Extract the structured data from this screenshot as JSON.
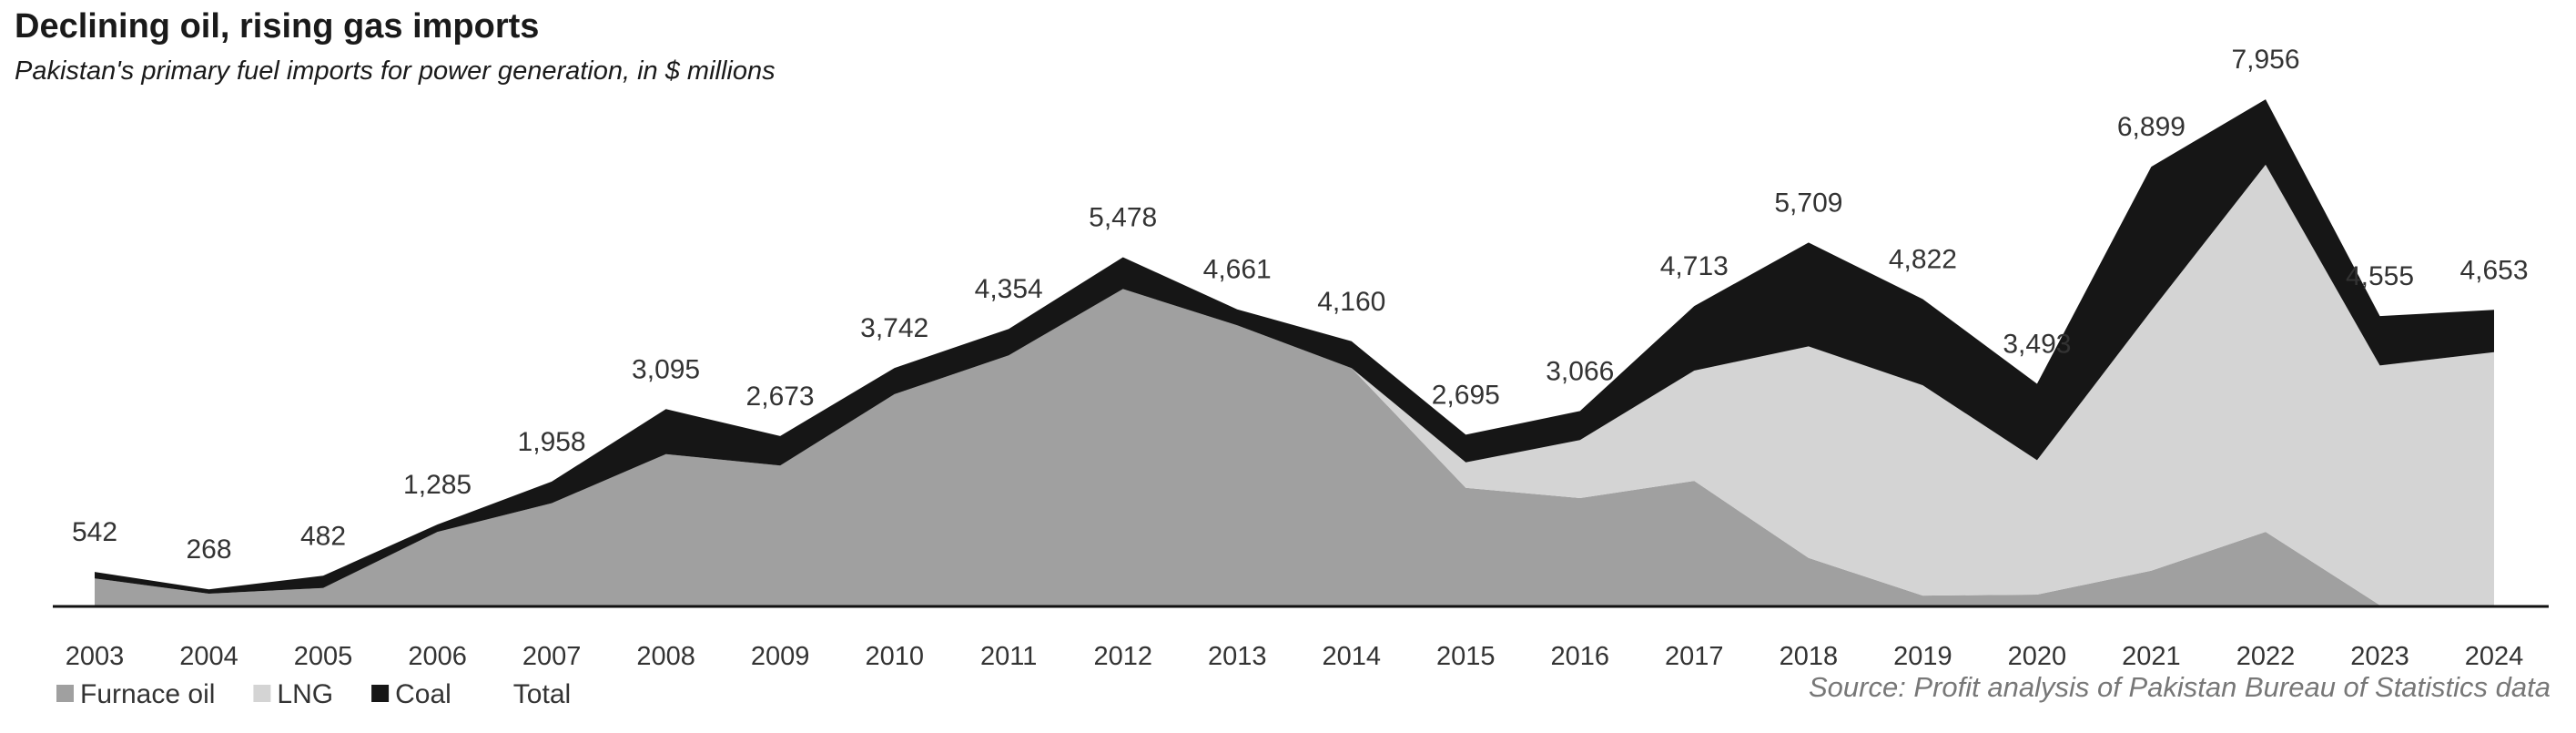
{
  "chart_data": {
    "type": "area",
    "stacked": true,
    "title": "Declining oil, rising gas imports",
    "subtitle": "Pakistan's primary fuel imports for power generation, in $ millions",
    "source": "Source: Profit analysis of Pakistan Bureau of Statistics data",
    "x": [
      "2003",
      "2004",
      "2005",
      "2006",
      "2007",
      "2008",
      "2009",
      "2010",
      "2011",
      "2012",
      "2013",
      "2014",
      "2015",
      "2016",
      "2017",
      "2018",
      "2019",
      "2020",
      "2021",
      "2022",
      "2023",
      "2024"
    ],
    "series": [
      {
        "name": "Furnace oil",
        "color": "#a0a0a0",
        "values": [
          440,
          200,
          290,
          1170,
          1620,
          2390,
          2210,
          3330,
          3940,
          4980,
          4410,
          3740,
          1860,
          1700,
          1970,
          760,
          170,
          185,
          560,
          1170,
          20,
          20
        ]
      },
      {
        "name": "LNG",
        "color": "#d4d4d4",
        "values": [
          0,
          0,
          0,
          0,
          0,
          0,
          0,
          0,
          0,
          0,
          0,
          0,
          400,
          910,
          1730,
          3320,
          3300,
          2110,
          4080,
          5760,
          3760,
          3970
        ]
      },
      {
        "name": "Coal",
        "color": "#161616",
        "values": [
          102,
          68,
          192,
          115,
          338,
          705,
          463,
          412,
          414,
          498,
          251,
          420,
          435,
          456,
          1013,
          1629,
          1352,
          1198,
          2259,
          1026,
          775,
          663
        ]
      }
    ],
    "total": {
      "name": "Total",
      "values": [
        542,
        268,
        482,
        1285,
        1958,
        3095,
        2673,
        3742,
        4354,
        5478,
        4661,
        4160,
        2695,
        3066,
        4713,
        5709,
        4822,
        3493,
        6899,
        7956,
        4555,
        4653
      ]
    },
    "total_labels": [
      "542",
      "268",
      "482",
      "1,285",
      "1,958",
      "3,095",
      "2,673",
      "3,742",
      "4,354",
      "5,478",
      "4,661",
      "4,160",
      "2,695",
      "3,066",
      "4,713",
      "5,709",
      "4,822",
      "3,493",
      "6,899",
      "7,956",
      "4,555",
      "4,653"
    ],
    "ylim": [
      0,
      8000
    ],
    "grid": false,
    "legend": "bottom-left"
  }
}
